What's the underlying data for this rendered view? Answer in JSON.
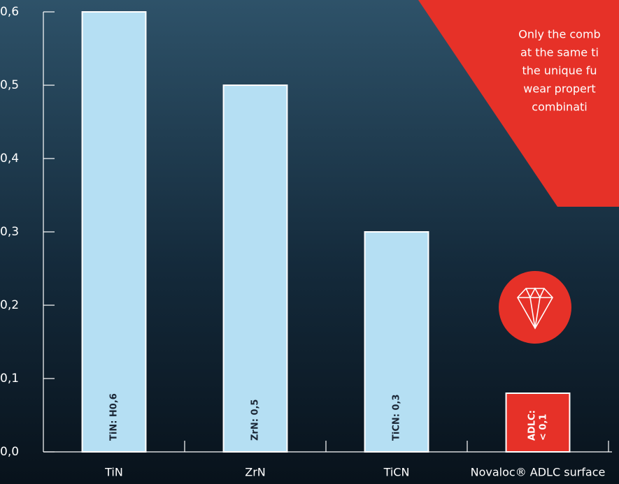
{
  "chart_data": {
    "type": "bar",
    "categories": [
      "TiN",
      "ZrN",
      "TiCN",
      "Novaloc® ADLC surface"
    ],
    "values": [
      0.6,
      0.5,
      0.3,
      0.08
    ],
    "colors": [
      "#b5dff3",
      "#b5dff3",
      "#b5dff3",
      "#e63128"
    ],
    "bar_labels": [
      [
        "TiN: H0,6"
      ],
      [
        "ZrN: 0,5"
      ],
      [
        "TiCN: 0,3"
      ],
      [
        "ADLC:",
        "< 0,1"
      ]
    ],
    "ylim": [
      0,
      0.6
    ],
    "yticks": [
      {
        "value": 0,
        "label": "0,0"
      },
      {
        "value": 0.1,
        "label": "0,1"
      },
      {
        "value": 0.2,
        "label": "0,2"
      },
      {
        "value": 0.3,
        "label": "0,3"
      },
      {
        "value": 0.4,
        "label": "0,4"
      },
      {
        "value": 0.5,
        "label": "0,5"
      },
      {
        "value": 0.6,
        "label": "0,6"
      }
    ],
    "annotation": [
      "Only the comb",
      "at the same ti",
      "the unique fu",
      "wear propert",
      "combinati"
    ]
  }
}
